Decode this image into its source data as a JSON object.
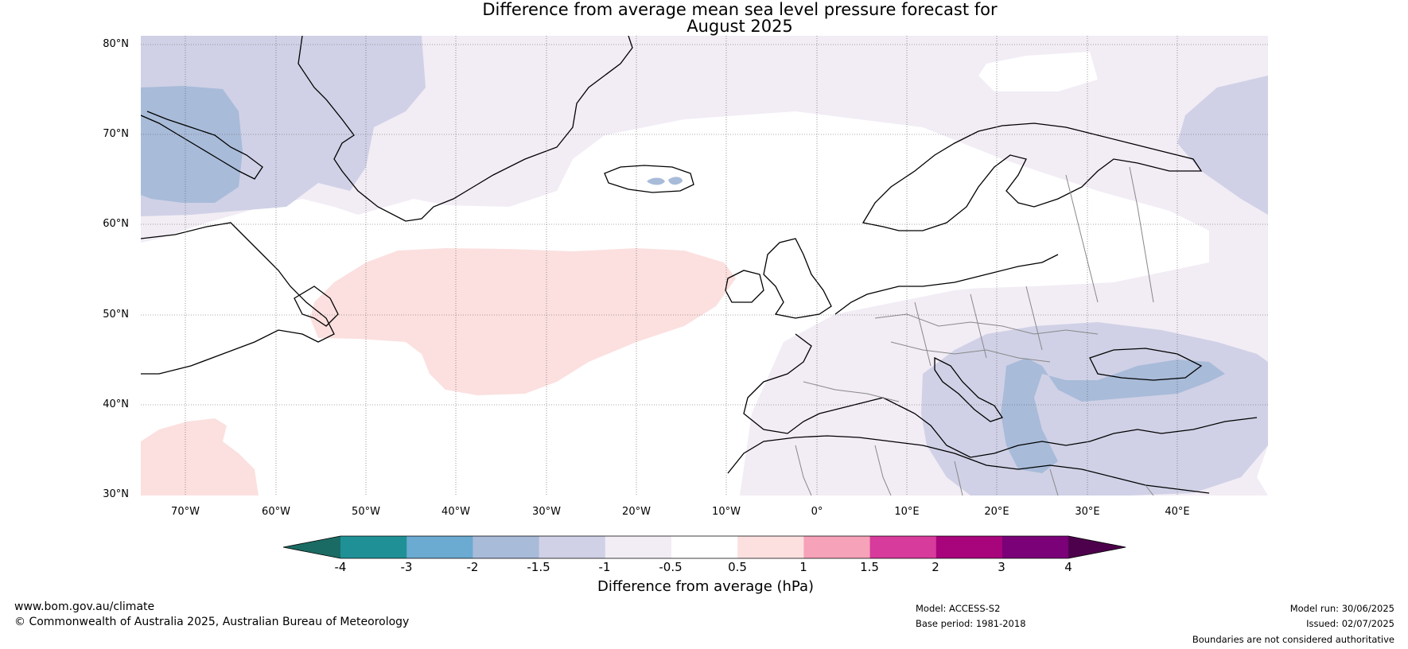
{
  "title": {
    "line1": "Difference from average mean sea level pressure forecast for",
    "line2": "August 2025"
  },
  "map": {
    "lat_labels": [
      "80°N",
      "70°N",
      "60°N",
      "50°N",
      "40°N",
      "30°N"
    ],
    "lon_labels": [
      "70°W",
      "60°W",
      "50°W",
      "40°W",
      "30°W",
      "20°W",
      "10°W",
      "0°",
      "10°E",
      "20°E",
      "30°E",
      "40°E"
    ],
    "extent": {
      "lon_min": -75,
      "lon_max": 50,
      "lat_min": 30,
      "lat_max": 81
    },
    "background_color": "#ffffff"
  },
  "colorbar": {
    "ticks": [
      "-4",
      "-3",
      "-2",
      "-1.5",
      "-1",
      "-0.5",
      "0.5",
      "1",
      "1.5",
      "2",
      "3",
      "4"
    ],
    "colors": [
      "#1a6b63",
      "#1f9196",
      "#6baad1",
      "#a8bbd9",
      "#d0d1e6",
      "#f2ecf5",
      "#ffffff",
      "#fbe0df",
      "#f6a2b9",
      "#d73b9b",
      "#a8047c",
      "#7a0177",
      "#4d004b"
    ],
    "label": "Difference from average (hPa)"
  },
  "footer": {
    "url": "www.bom.gov.au/climate",
    "copyright": "© Commonwealth of Australia 2025, Australian Bureau of Meteorology",
    "model": "Model: ACCESS-S2",
    "base_period": "Base period: 1981-2018",
    "model_run": "Model run: 30/06/2025",
    "issued": "Issued: 02/07/2025",
    "disclaimer": "Boundaries are not considered authoritative"
  }
}
